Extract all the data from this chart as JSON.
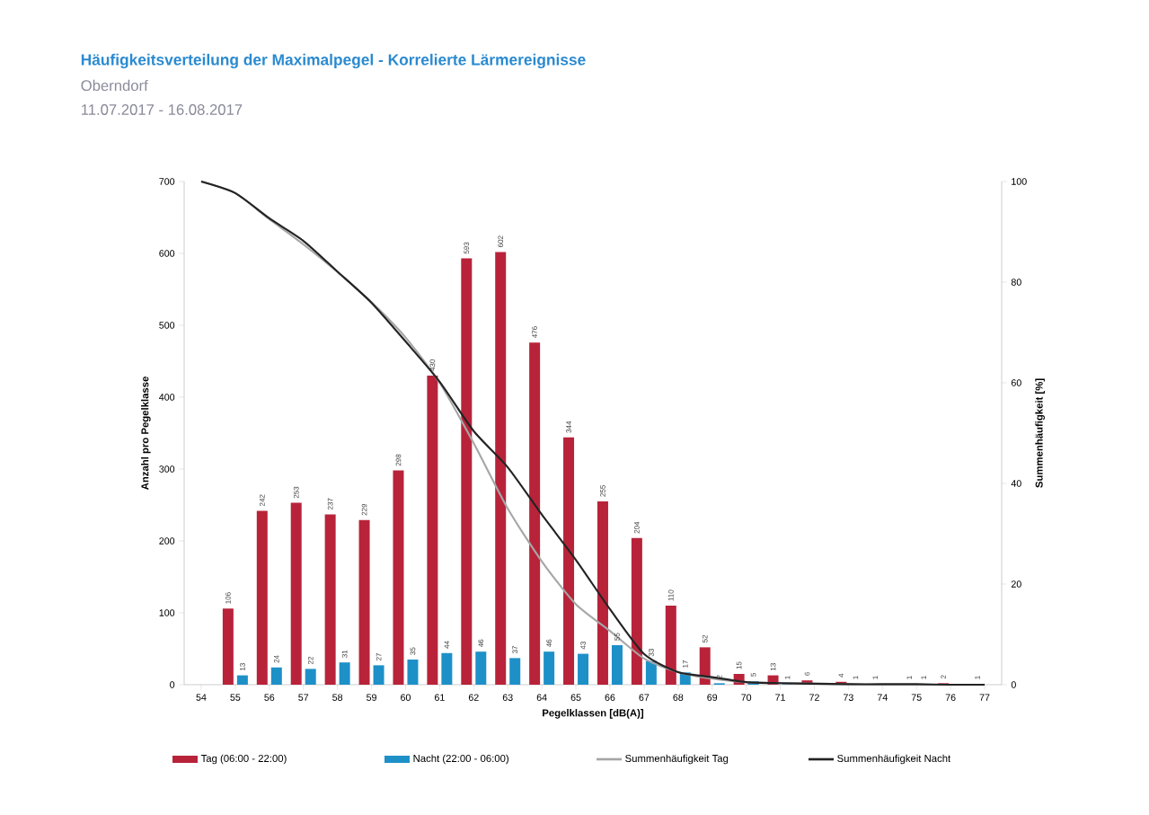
{
  "chart_data": {
    "type": "bar",
    "title": "Häufigkeitsverteilung der Maximalpegel - Korrelierte Lärmereignisse",
    "subtitle": "Oberndorf",
    "annotations": [
      "11.07.2017 - 16.08.2017"
    ],
    "xlabel": "Pegelklassen [dB(A)]",
    "ylabel": "Anzahl pro Pegelklasse",
    "y2label": "Summenhäufigkeit [%]",
    "categories": [
      "54",
      "55",
      "56",
      "57",
      "58",
      "59",
      "60",
      "61",
      "62",
      "63",
      "64",
      "65",
      "66",
      "67",
      "68",
      "69",
      "70",
      "71",
      "72",
      "73",
      "74",
      "75",
      "76",
      "77"
    ],
    "series": [
      {
        "name": "Tag (06:00 - 22:00)",
        "color": "#b8233a",
        "values": [
          null,
          106,
          242,
          253,
          237,
          229,
          298,
          430,
          593,
          602,
          476,
          344,
          255,
          204,
          110,
          52,
          15,
          13,
          6,
          4,
          1,
          1,
          2,
          1
        ],
        "value_labels": [
          null,
          "106",
          "242",
          "253",
          "237",
          "229",
          "298",
          "430",
          "593",
          "602",
          "476",
          "344",
          "255",
          "204",
          "110",
          "52",
          "15",
          "13",
          "6",
          "4",
          "1",
          "1",
          "2",
          "1"
        ]
      },
      {
        "name": "Nacht (22:00 - 06:00)",
        "color": "#1e90c8",
        "values": [
          null,
          13,
          24,
          22,
          31,
          27,
          35,
          44,
          46,
          37,
          46,
          43,
          55,
          33,
          17,
          2,
          5,
          1,
          null,
          1,
          null,
          1,
          null,
          null
        ],
        "value_labels": [
          null,
          "13",
          "24",
          "22",
          "31",
          "27",
          "35",
          "44",
          "46",
          "37",
          "46",
          "43",
          "55",
          "33",
          "17",
          "2",
          "5",
          "1",
          null,
          "1",
          null,
          "1",
          null,
          null
        ]
      },
      {
        "name": "Summenhäufigkeit Tag",
        "type": "line",
        "axis": "y2",
        "color": "#a6a6a6",
        "values": [
          100,
          97.7,
          92.5,
          87.5,
          82,
          76,
          69,
          60,
          48,
          35,
          24.5,
          16,
          10.7,
          5.2,
          2.5,
          1.2,
          0.5,
          0.3,
          0.2,
          0.1,
          0,
          0,
          0,
          0
        ]
      },
      {
        "name": "Summenhäufigkeit Nacht",
        "type": "line",
        "axis": "y2",
        "color": "#232323",
        "values": [
          100,
          97.7,
          92.7,
          88.2,
          82.1,
          75.9,
          68.2,
          60.2,
          50.4,
          43.2,
          33.8,
          24.8,
          15,
          6.1,
          2.5,
          1.5,
          0.5,
          0.3,
          0.2,
          0.1,
          0.1,
          0.1,
          0,
          0
        ]
      }
    ],
    "ylim": [
      0,
      700
    ],
    "yticks": [
      0,
      100,
      200,
      300,
      400,
      500,
      600,
      700
    ],
    "y2lim": [
      0,
      100
    ],
    "y2ticks": [
      0,
      20,
      40,
      60,
      80,
      100
    ],
    "legend": "bottom"
  }
}
